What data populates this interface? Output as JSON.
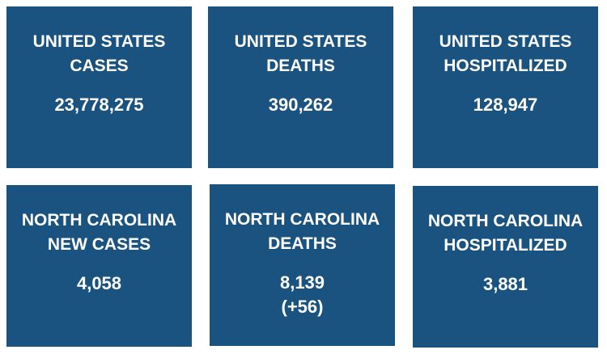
{
  "cards": [
    {
      "title_lines": [
        "UNITED STATES",
        "CASES"
      ],
      "value": "23,778,275"
    },
    {
      "title_lines": [
        "UNITED STATES",
        "DEATHS"
      ],
      "value": "390,262"
    },
    {
      "title_lines": [
        "UNITED STATES",
        "HOSPITALIZED"
      ],
      "value": "128,947"
    },
    {
      "title_lines": [
        "NORTH CAROLINA",
        "NEW CASES"
      ],
      "value": "4,058"
    },
    {
      "title_lines": [
        "NORTH CAROLINA",
        "DEATHS"
      ],
      "value": "8,139",
      "change": "(+56)"
    },
    {
      "title_lines": [
        "NORTH CAROLINA",
        "HOSPITALIZED"
      ],
      "value": "3,881"
    }
  ]
}
